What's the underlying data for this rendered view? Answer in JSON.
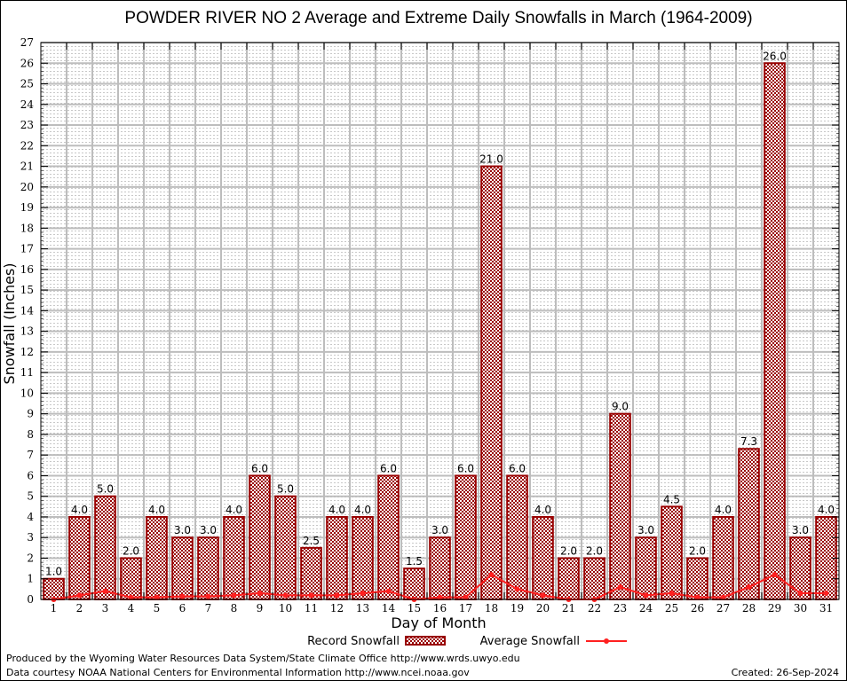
{
  "chart_data": {
    "type": "bar",
    "title": "POWDER RIVER NO 2 Average and Extreme Daily Snowfalls in March (1964-2009)",
    "xlabel": "Day of Month",
    "ylabel": "Snowfall (Inches)",
    "ylim": [
      0,
      27
    ],
    "yticks": [
      0,
      1,
      2,
      3,
      4,
      5,
      6,
      7,
      8,
      9,
      10,
      11,
      12,
      13,
      14,
      15,
      16,
      17,
      18,
      19,
      20,
      21,
      22,
      23,
      24,
      25,
      26,
      27
    ],
    "grid": true,
    "categories": [
      "1",
      "2",
      "3",
      "4",
      "5",
      "6",
      "7",
      "8",
      "9",
      "10",
      "11",
      "12",
      "13",
      "14",
      "15",
      "16",
      "17",
      "18",
      "19",
      "20",
      "21",
      "22",
      "23",
      "24",
      "25",
      "26",
      "27",
      "28",
      "29",
      "30",
      "31"
    ],
    "series": [
      {
        "name": "Record Snowfall",
        "type": "bar",
        "color": "#990000",
        "values": [
          1.0,
          4.0,
          5.0,
          2.0,
          4.0,
          3.0,
          3.0,
          4.0,
          6.0,
          5.0,
          2.5,
          4.0,
          4.0,
          6.0,
          1.5,
          3.0,
          6.0,
          21.0,
          6.0,
          4.0,
          2.0,
          2.0,
          9.0,
          3.0,
          4.5,
          2.0,
          4.0,
          7.3,
          26.0,
          3.0,
          4.0
        ],
        "labels": [
          "1.0",
          "4.0",
          "5.0",
          "2.0",
          "4.0",
          "3.0",
          "3.0",
          "4.0",
          "6.0",
          "5.0",
          "2.5",
          "4.0",
          "4.0",
          "6.0",
          "1.5",
          "3.0",
          "6.0",
          "21.0",
          "6.0",
          "4.0",
          "2.0",
          "2.0",
          "9.0",
          "3.0",
          "4.5",
          "2.0",
          "4.0",
          "7.3",
          "26.0",
          "3.0",
          "4.0"
        ]
      },
      {
        "name": "Average Snowfall",
        "type": "line",
        "color": "#ff2020",
        "values": [
          0.0,
          0.2,
          0.4,
          0.1,
          0.1,
          0.15,
          0.15,
          0.2,
          0.3,
          0.2,
          0.2,
          0.2,
          0.3,
          0.4,
          0.0,
          0.1,
          0.1,
          1.2,
          0.5,
          0.2,
          0.0,
          0.0,
          0.6,
          0.2,
          0.3,
          0.1,
          0.1,
          0.6,
          1.2,
          0.3,
          0.3
        ]
      }
    ],
    "legend": "bottom-center"
  },
  "footer": {
    "line1": "Produced by the Wyoming Water Resources Data System/State Climate Office http://www.wrds.uwyo.edu",
    "line2": "Data courtesy NOAA National Centers for Environmental Information http://www.ncei.noaa.gov",
    "created": "Created: 26-Sep-2024"
  }
}
